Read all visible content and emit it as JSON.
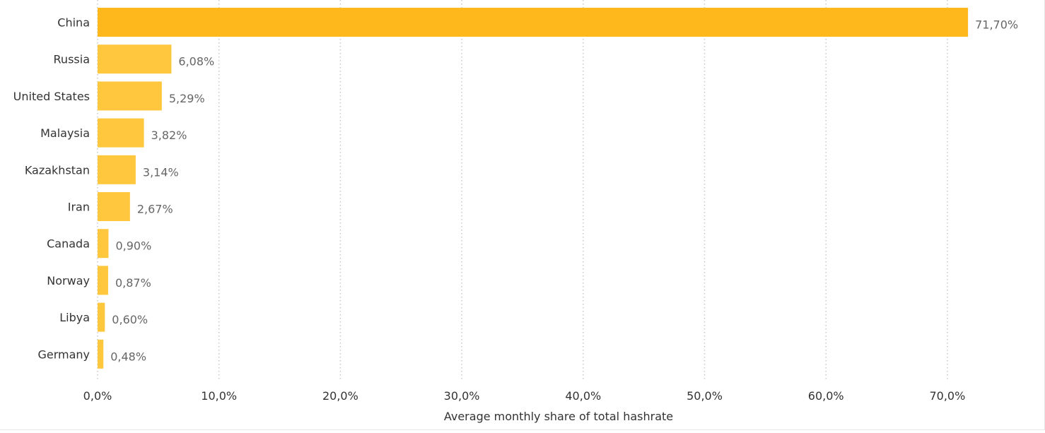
{
  "chart_data": {
    "type": "bar",
    "orientation": "horizontal",
    "categories": [
      "China",
      "Russia",
      "United States",
      "Malaysia",
      "Kazakhstan",
      "Iran",
      "Canada",
      "Norway",
      "Libya",
      "Germany"
    ],
    "values": [
      71.7,
      6.08,
      5.29,
      3.82,
      3.14,
      2.67,
      0.9,
      0.87,
      0.6,
      0.48
    ],
    "value_labels": [
      "71,70%",
      "6,08%",
      "5,29%",
      "3,82%",
      "3,14%",
      "2,67%",
      "0,90%",
      "0,87%",
      "0,60%",
      "0,48%"
    ],
    "xlabel": "Average monthly share of total hashrate",
    "ylabel": "",
    "title": "",
    "xlim": [
      0,
      72
    ],
    "xticks": [
      0,
      10,
      20,
      30,
      40,
      50,
      60,
      70
    ],
    "xtick_labels": [
      "0,0%",
      "10,0%",
      "20,0%",
      "30,0%",
      "40,0%",
      "50,0%",
      "60,0%",
      "70,0%"
    ],
    "grid": "vertical dotted",
    "colors": {
      "bar_top": "#ffb81c",
      "bar": "#ffc73d",
      "grid": "#c8c8c8",
      "text": "#333333",
      "value_text": "#666666"
    }
  }
}
